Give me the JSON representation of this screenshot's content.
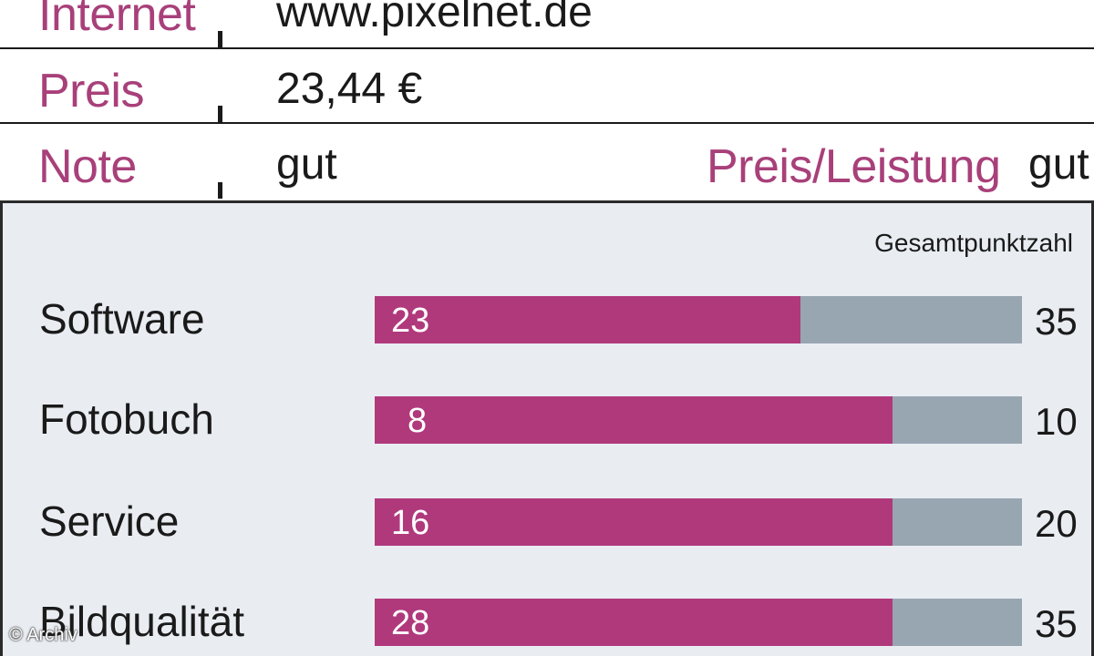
{
  "info": {
    "internet_label": "Internet",
    "internet_value": "www.pixelnet.de",
    "preis_label": "Preis",
    "preis_value": "23,44 €",
    "note_label": "Note",
    "note_value": "gut",
    "pl_label": "Preis/Leistung",
    "pl_value": "gut"
  },
  "chart_data": {
    "type": "bar",
    "orientation": "horizontal",
    "total_header": "Gesamtpunktzahl",
    "categories": [
      "Software",
      "Fotobuch",
      "Service",
      "Bildqualität"
    ],
    "values": [
      23,
      8,
      16,
      28
    ],
    "max_values": [
      35,
      10,
      20,
      35
    ],
    "colors": {
      "score": "#b0397c",
      "remaining": "#98a6b2",
      "label": "#a8407a"
    }
  },
  "credit": "© Archiv"
}
